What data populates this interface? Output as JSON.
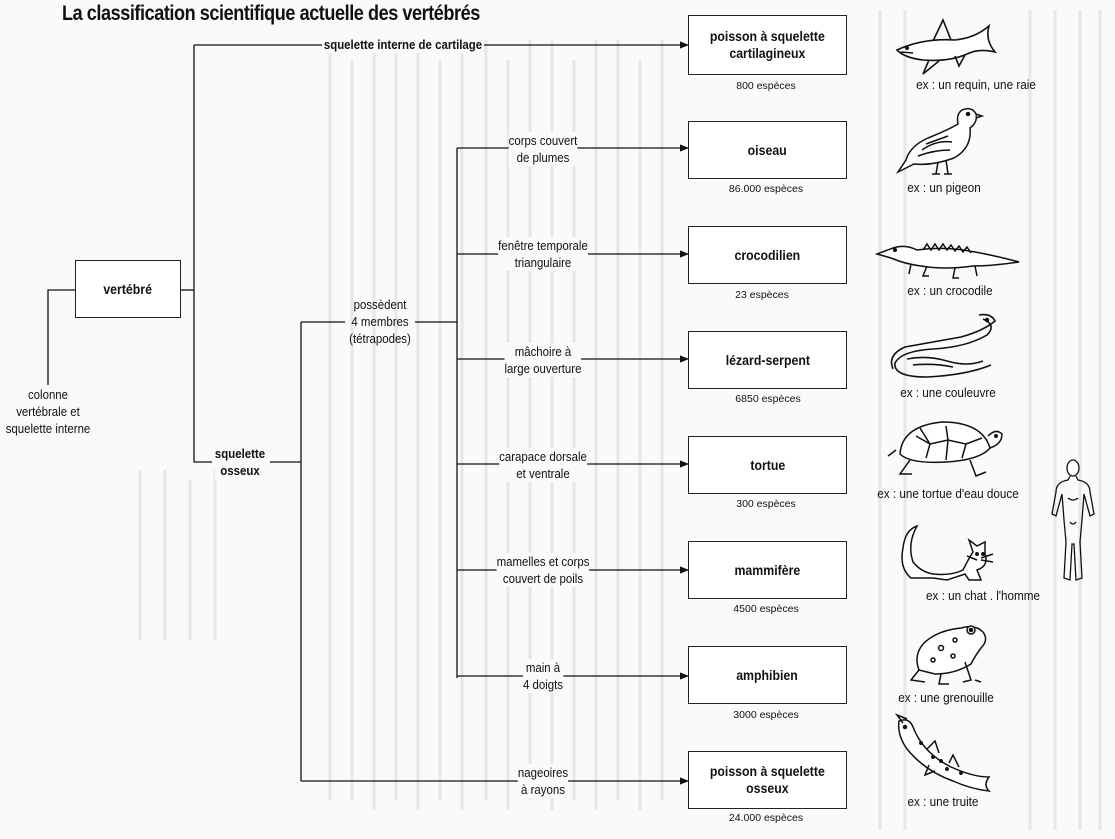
{
  "title": "La classification scientifique actuelle des vertébrés",
  "root": {
    "box": "vertébré",
    "criterion": "colonne\nvertébrale et\nsquelette interne"
  },
  "branches": {
    "cartilage": "squelette interne de cartilage",
    "osseux": "squelette\nosseux",
    "tetrapodes": "possèdent\n4 membres\n(tétrapodes)",
    "nageoires": "nageoires\nà rayons"
  },
  "groups": [
    {
      "name": "poisson à squelette\ncartilagineux",
      "count": "800 espèces",
      "example": "ex : un requin, une raie",
      "icon": "shark-icon"
    },
    {
      "name": "oiseau",
      "criterion": "corps couvert\nde plumes",
      "count": "86.000 espèces",
      "example": "ex : un pigeon",
      "icon": "pigeon-icon"
    },
    {
      "name": "crocodilien",
      "criterion": "fenêtre temporale\ntriangulaire",
      "count": "23 espèces",
      "example": "ex : un crocodile",
      "icon": "crocodile-icon"
    },
    {
      "name": "lézard-serpent",
      "criterion": "mâchoire à\nlarge ouverture",
      "count": "6850 espèces",
      "example": "ex : une couleuvre",
      "icon": "snake-icon"
    },
    {
      "name": "tortue",
      "criterion": "carapace dorsale\net ventrale",
      "count": "300 espèces",
      "example": "ex : une tortue d'eau douce",
      "icon": "turtle-icon"
    },
    {
      "name": "mammifère",
      "criterion": "mamelles et corps\ncouvert de poils",
      "count": "4500 espèces",
      "example": "ex : un chat . l'homme",
      "icon": "cat-icon"
    },
    {
      "name": "amphibien",
      "criterion": "main à\n4 doigts",
      "count": "3000 espèces",
      "example": "ex : une grenouille",
      "icon": "frog-icon"
    },
    {
      "name": "poisson à squelette\nosseux",
      "count": "24.000 espèces",
      "example": "ex : une truite",
      "icon": "trout-icon"
    }
  ],
  "colors": {
    "ink": "#111111",
    "paper": "#fafafa",
    "bleed": "#cfcfcf"
  }
}
